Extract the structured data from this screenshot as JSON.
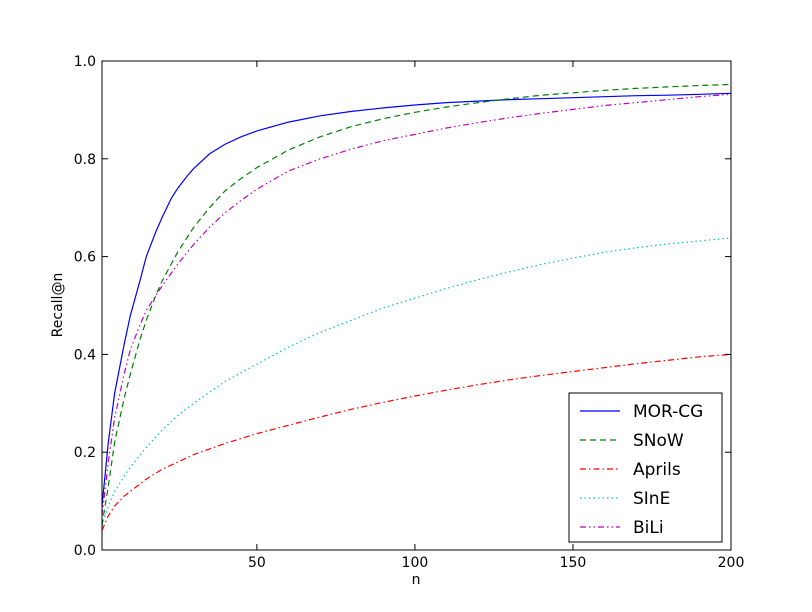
{
  "chart_data": {
    "type": "line",
    "title": "",
    "xlabel": "n",
    "ylabel": "Recall@n",
    "xlim": [
      1,
      200
    ],
    "ylim": [
      0,
      1
    ],
    "xticks": [
      50,
      100,
      150,
      200
    ],
    "xtick_labels": [
      "50",
      "100",
      "150",
      "200"
    ],
    "yticks": [
      0,
      0.2,
      0.4,
      0.6,
      0.8,
      1.0
    ],
    "ytick_labels": [
      "0.0",
      "0.2",
      "0.4",
      "0.6",
      "0.8",
      "1.0"
    ],
    "grid": false,
    "legend_position": "lower-right",
    "series": [
      {
        "name": "MOR-CG",
        "color": "#0000ff",
        "style": "solid",
        "x": [
          1,
          3,
          5,
          8,
          10,
          13,
          15,
          18,
          20,
          23,
          25,
          28,
          30,
          35,
          40,
          45,
          50,
          60,
          70,
          80,
          90,
          100,
          110,
          120,
          130,
          140,
          150,
          160,
          170,
          180,
          190,
          200
        ],
        "y": [
          0.09,
          0.22,
          0.32,
          0.42,
          0.48,
          0.55,
          0.6,
          0.65,
          0.68,
          0.72,
          0.74,
          0.765,
          0.78,
          0.81,
          0.83,
          0.845,
          0.857,
          0.875,
          0.888,
          0.897,
          0.904,
          0.91,
          0.915,
          0.918,
          0.921,
          0.923,
          0.925,
          0.927,
          0.929,
          0.93,
          0.932,
          0.934
        ]
      },
      {
        "name": "SNoW",
        "color": "#008000",
        "style": "dashed",
        "x": [
          1,
          3,
          5,
          8,
          10,
          13,
          15,
          18,
          20,
          25,
          30,
          35,
          40,
          45,
          50,
          60,
          70,
          80,
          90,
          100,
          110,
          120,
          130,
          140,
          150,
          160,
          170,
          180,
          190,
          200
        ],
        "y": [
          0.05,
          0.13,
          0.22,
          0.31,
          0.36,
          0.43,
          0.47,
          0.52,
          0.55,
          0.61,
          0.66,
          0.7,
          0.735,
          0.76,
          0.782,
          0.818,
          0.845,
          0.866,
          0.882,
          0.895,
          0.906,
          0.915,
          0.923,
          0.93,
          0.935,
          0.94,
          0.944,
          0.947,
          0.95,
          0.952
        ]
      },
      {
        "name": "Aprils",
        "color": "#ff0000",
        "style": "dashdot",
        "x": [
          1,
          3,
          5,
          8,
          10,
          15,
          20,
          25,
          30,
          40,
          50,
          60,
          70,
          80,
          90,
          100,
          110,
          120,
          130,
          140,
          150,
          160,
          170,
          180,
          190,
          200
        ],
        "y": [
          0.04,
          0.07,
          0.09,
          0.11,
          0.12,
          0.145,
          0.165,
          0.18,
          0.195,
          0.218,
          0.238,
          0.255,
          0.272,
          0.288,
          0.302,
          0.315,
          0.327,
          0.338,
          0.348,
          0.357,
          0.365,
          0.373,
          0.381,
          0.388,
          0.395,
          0.4
        ]
      },
      {
        "name": "SInE",
        "color": "#00bfbf",
        "style": "dotted",
        "x": [
          1,
          3,
          5,
          8,
          10,
          15,
          20,
          25,
          30,
          40,
          50,
          60,
          70,
          80,
          90,
          100,
          110,
          120,
          130,
          140,
          150,
          160,
          170,
          180,
          190,
          200
        ],
        "y": [
          0.05,
          0.09,
          0.12,
          0.15,
          0.17,
          0.21,
          0.245,
          0.275,
          0.3,
          0.345,
          0.38,
          0.415,
          0.445,
          0.47,
          0.495,
          0.515,
          0.535,
          0.553,
          0.569,
          0.584,
          0.597,
          0.609,
          0.618,
          0.626,
          0.632,
          0.638
        ]
      },
      {
        "name": "BiLi",
        "color": "#bf00bf",
        "style": "dashdotdot",
        "x": [
          1,
          3,
          5,
          8,
          10,
          13,
          15,
          18,
          20,
          25,
          30,
          35,
          40,
          45,
          50,
          60,
          70,
          80,
          90,
          100,
          110,
          120,
          130,
          140,
          150,
          160,
          170,
          180,
          190,
          200
        ],
        "y": [
          0.07,
          0.18,
          0.27,
          0.36,
          0.41,
          0.46,
          0.49,
          0.52,
          0.54,
          0.585,
          0.625,
          0.66,
          0.69,
          0.715,
          0.738,
          0.775,
          0.8,
          0.82,
          0.837,
          0.85,
          0.863,
          0.874,
          0.884,
          0.893,
          0.901,
          0.909,
          0.915,
          0.921,
          0.927,
          0.932
        ]
      }
    ]
  }
}
